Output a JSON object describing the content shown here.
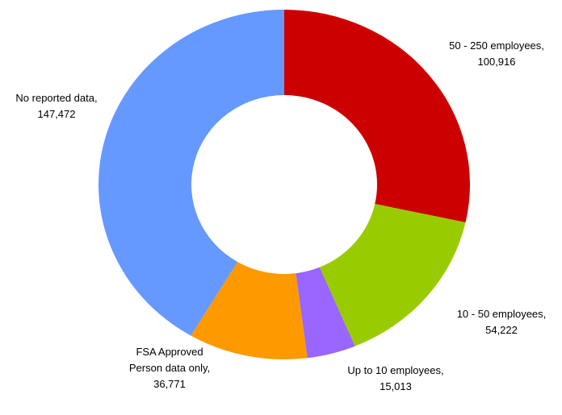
{
  "chart_data": {
    "type": "donut",
    "categories": [
      "50 - 250 employees,",
      "10 - 50 employees,",
      "Up to 10 employees,",
      "FSA Approved Person data only,",
      "No reported data,"
    ],
    "values": [
      100916,
      54222,
      15013,
      36771,
      147472
    ],
    "value_labels": [
      "100,916",
      "54,222",
      "15,013",
      "36,771",
      "147,472"
    ],
    "colors": [
      "#cc0000",
      "#99cc00",
      "#9966ff",
      "#ff9900",
      "#6699ff"
    ]
  }
}
